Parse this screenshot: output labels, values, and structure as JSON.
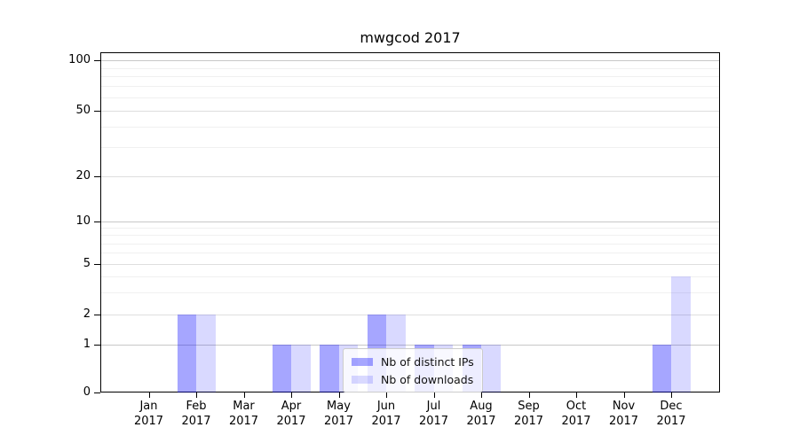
{
  "figure": {
    "background": "#ffffff",
    "axis_color": "#000000"
  },
  "chart_data": {
    "type": "bar",
    "title": "mwgcod 2017",
    "xlabel": "",
    "ylabel": "",
    "yscale": "symlog",
    "yticks": [
      0,
      1,
      2,
      5,
      10,
      20,
      50,
      100
    ],
    "ylim": [
      0,
      112
    ],
    "grid": "on",
    "legend_position": "inside-lower-center",
    "year": "2017",
    "months": [
      "Jan",
      "Feb",
      "Mar",
      "Apr",
      "May",
      "Jun",
      "Jul",
      "Aug",
      "Sep",
      "Oct",
      "Nov",
      "Dec"
    ],
    "categories": [
      "Jan 2017",
      "Feb 2017",
      "Mar 2017",
      "Apr 2017",
      "May 2017",
      "Jun 2017",
      "Jul 2017",
      "Aug 2017",
      "Sep 2017",
      "Oct 2017",
      "Nov 2017",
      "Dec 2017"
    ],
    "series": [
      {
        "name": "Nb of distinct IPs",
        "color": "#0000ff",
        "alpha": 0.35,
        "values": [
          0,
          2,
          0,
          1,
          1,
          2,
          1,
          1,
          0,
          0,
          0,
          1
        ]
      },
      {
        "name": "Nb of downloads",
        "color": "#0000ff",
        "alpha": 0.15,
        "values": [
          0,
          2,
          0,
          1,
          1,
          2,
          1,
          1,
          0,
          0,
          0,
          4
        ]
      }
    ],
    "grid_colors": {
      "power_of_ten": "#c8c8c8",
      "labeled": "#dedede",
      "minor": "#f0f0f0"
    }
  }
}
